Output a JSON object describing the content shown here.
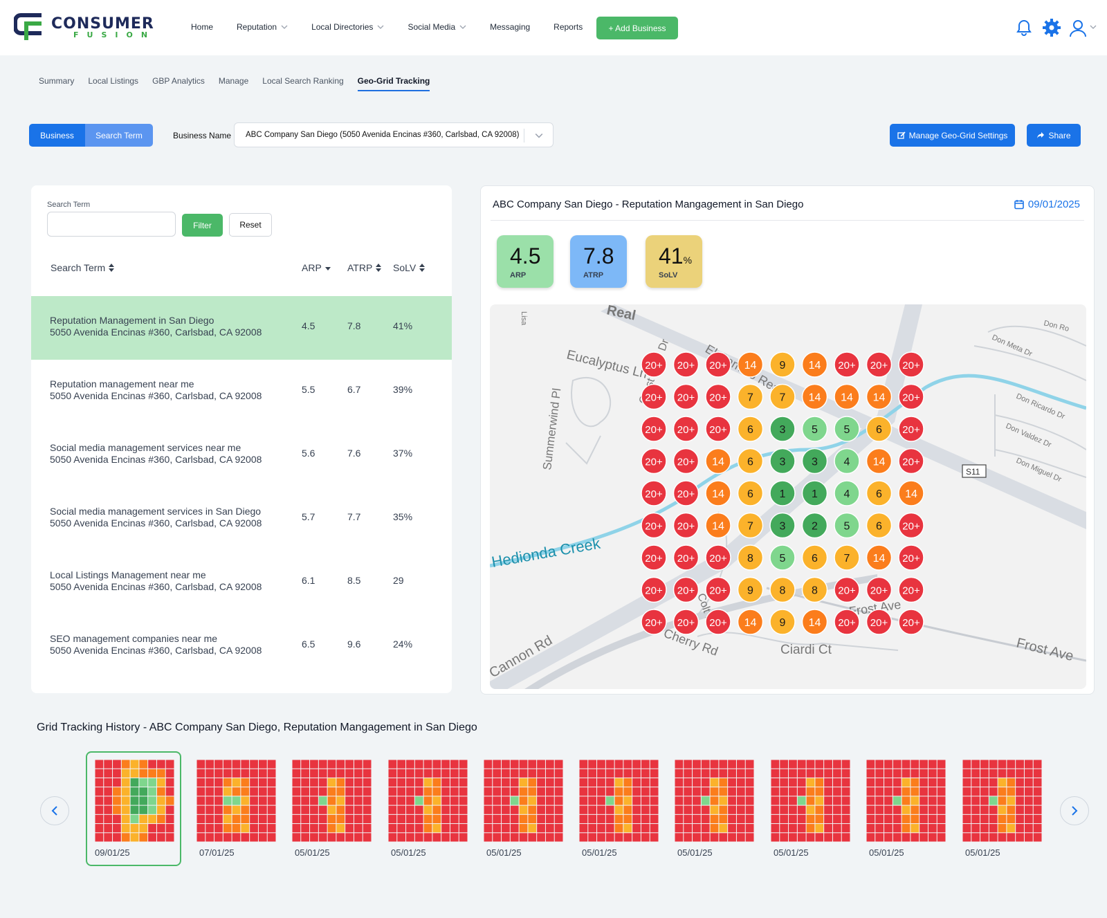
{
  "brand": {
    "name": "CONSUMER",
    "sub": "FUSION"
  },
  "nav": {
    "items": [
      {
        "label": "Home",
        "dropdown": false
      },
      {
        "label": "Reputation",
        "dropdown": true
      },
      {
        "label": "Local Directories",
        "dropdown": true
      },
      {
        "label": "Social Media",
        "dropdown": true
      },
      {
        "label": "Messaging",
        "dropdown": false
      },
      {
        "label": "Reports",
        "dropdown": false
      }
    ],
    "add_business": "+ Add Business",
    "icons": [
      "bell-icon",
      "gear-icon",
      "user-icon"
    ]
  },
  "subtabs": [
    "Summary",
    "Local Listings",
    "GBP Analytics",
    "Manage",
    "Local Search Ranking",
    "Geo-Grid Tracking"
  ],
  "active_subtab": "Geo-Grid Tracking",
  "toolbar": {
    "toggle_business": "Business",
    "toggle_search_term": "Search Term",
    "business_name_label": "Business Name",
    "business_name_value": "ABC Company San Diego (5050 Avenida Encinas #360, Carlsbad, CA 92008)",
    "manage_settings": "Manage Geo-Grid Settings",
    "share": "Share"
  },
  "search": {
    "label": "Search Term",
    "value": "",
    "filter": "Filter",
    "reset": "Reset"
  },
  "table": {
    "headers": {
      "term": "Search Term",
      "arp": "ARP",
      "atrp": "ATRP",
      "solv": "SoLV"
    },
    "rows": [
      {
        "term": "Reputation Management in San Diego",
        "address": "5050 Avenida Encinas #360, Carlsbad, CA 92008",
        "arp": "4.5",
        "atrp": "7.8",
        "solv": "41%"
      },
      {
        "term": "Reputation management near me",
        "address": "5050 Avenida Encinas #360, Carlsbad, CA 92008",
        "arp": "5.5",
        "atrp": "6.7",
        "solv": "39%"
      },
      {
        "term": "Social media management services near me",
        "address": "5050 Avenida Encinas #360, Carlsbad, CA 92008",
        "arp": "5.6",
        "atrp": "7.6",
        "solv": "37%"
      },
      {
        "term": "Social media management services in San Diego",
        "address": "5050 Avenida Encinas #360, Carlsbad, CA 92008",
        "arp": "5.7",
        "atrp": "7.7",
        "solv": "35%"
      },
      {
        "term": "Local Listings Management near me",
        "address": "5050 Avenida Encinas #360, Carlsbad, CA 92008",
        "arp": "6.1",
        "atrp": "8.5",
        "solv": "29"
      },
      {
        "term": "SEO management companies near me",
        "address": "5050 Avenida Encinas #360, Carlsbad, CA 92008",
        "arp": "6.5",
        "atrp": "9.6",
        "solv": "24%"
      }
    ]
  },
  "detail": {
    "title": "ABC Company San Diego - Reputation Mangagement in San Diego",
    "date": "09/01/2025",
    "metrics": [
      {
        "value": "4.5",
        "unit": "",
        "label": "ARP",
        "color": "#9be0a9"
      },
      {
        "value": "7.8",
        "unit": "",
        "label": "ATRP",
        "color": "#7db8f7"
      },
      {
        "value": "41",
        "unit": "%",
        "label": "SoLV",
        "color": "#ebd27a"
      }
    ]
  },
  "map_labels": [
    "Real",
    "Lisa",
    "Eucalyptus Ln",
    "El Camino Real",
    "Summerwind Pl",
    "Hedionda Creek",
    "Cannon Rd",
    "Frost Ave",
    "Ciardi Ct",
    "Cherry Rd",
    "S11",
    "Don Ro",
    "Don Meta Dr",
    "Don Ricardo Dr",
    "Don Valdez Dr",
    "Don Miguel Dr",
    "Crest View Dr",
    "Colt Pl",
    "Frost Ave"
  ],
  "grid": [
    [
      "20+",
      "20+",
      "20+",
      "14",
      "9",
      "14",
      "20+",
      "20+",
      "20+"
    ],
    [
      "20+",
      "20+",
      "20+",
      "7",
      "7",
      "14",
      "14",
      "14",
      "20+"
    ],
    [
      "20+",
      "20+",
      "20+",
      "6",
      "3",
      "5",
      "5",
      "6",
      "20+"
    ],
    [
      "20+",
      "20+",
      "14",
      "6",
      "3",
      "3",
      "4",
      "14",
      "20+"
    ],
    [
      "20+",
      "20+",
      "14",
      "6",
      "1",
      "1",
      "4",
      "6",
      "14"
    ],
    [
      "20+",
      "20+",
      "14",
      "7",
      "3",
      "2",
      "5",
      "6",
      "20+"
    ],
    [
      "20+",
      "20+",
      "20+",
      "8",
      "5",
      "6",
      "7",
      "14",
      "20+"
    ],
    [
      "20+",
      "20+",
      "20+",
      "9",
      "8",
      "8",
      "20+",
      "20+",
      "20+"
    ],
    [
      "20+",
      "20+",
      "20+",
      "14",
      "9",
      "14",
      "20+",
      "20+",
      "20+"
    ]
  ],
  "rank_colors": {
    "top3": "#43a95b",
    "top6": "#7fd68d",
    "mid": "#fbb22b",
    "low": "#fb7d1c",
    "none": "#e8343f"
  },
  "history": {
    "title": "Grid Tracking History - ABC Company San Diego, Reputation Mangagement in San Diego",
    "dates": [
      "09/01/25",
      "07/01/25",
      "05/01/25",
      "05/01/25",
      "05/01/25",
      "05/01/25",
      "05/01/25",
      "05/01/25",
      "05/01/25",
      "05/01/25"
    ],
    "active_index": 0
  }
}
